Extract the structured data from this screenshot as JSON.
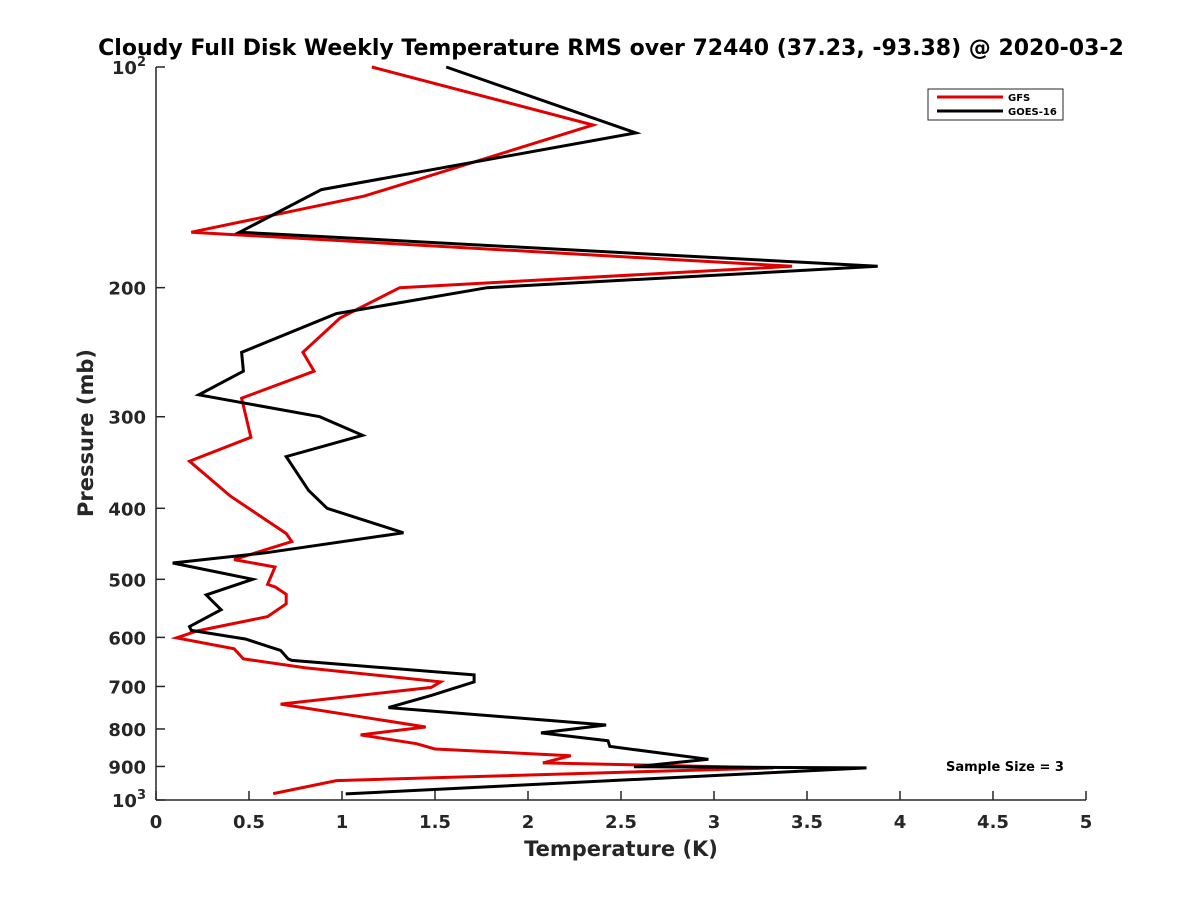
{
  "chart_data": {
    "type": "line",
    "title": "Cloudy Full Disk Weekly Temperature RMS over 72440 (37.23, -93.38) @ 2020-03-2",
    "xlabel": "Temperature (K)",
    "ylabel": "Pressure (mb)",
    "xlim": [
      0,
      5
    ],
    "ylim": [
      100,
      1000
    ],
    "y_scale": "log",
    "y_reversed": true,
    "grid": false,
    "legend_position": "top-right",
    "x_ticks": [
      "0",
      "0.5",
      "1",
      "1.5",
      "2",
      "2.5",
      "3",
      "3.5",
      "4",
      "4.5",
      "5"
    ],
    "y_ticks": [
      {
        "value": 200,
        "label": "200"
      },
      {
        "value": 300,
        "label": "300"
      },
      {
        "value": 400,
        "label": "400"
      },
      {
        "value": 500,
        "label": "500"
      },
      {
        "value": 600,
        "label": "600"
      },
      {
        "value": 700,
        "label": "700"
      },
      {
        "value": 800,
        "label": "800"
      },
      {
        "value": 900,
        "label": "900"
      }
    ],
    "y_power_ticks": [
      {
        "value": 100,
        "base": "10",
        "exp": "2"
      },
      {
        "value": 1000,
        "base": "10",
        "exp": "3"
      }
    ],
    "annotation": "Sample Size = 3",
    "series": [
      {
        "name": "GFS",
        "color": "#e00000",
        "points": [
          [
            1.16,
            100
          ],
          [
            2.35,
            120
          ],
          [
            1.12,
            150
          ],
          [
            0.19,
            168
          ],
          [
            3.42,
            187
          ],
          [
            1.31,
            200
          ],
          [
            0.99,
            220
          ],
          [
            0.79,
            245
          ],
          [
            0.85,
            260
          ],
          [
            0.46,
            283
          ],
          [
            0.51,
            320
          ],
          [
            0.18,
            345
          ],
          [
            0.4,
            385
          ],
          [
            0.7,
            433
          ],
          [
            0.73,
            444
          ],
          [
            0.42,
            470
          ],
          [
            0.64,
            481
          ],
          [
            0.6,
            508
          ],
          [
            0.64,
            512
          ],
          [
            0.7,
            524
          ],
          [
            0.7,
            540
          ],
          [
            0.6,
            562
          ],
          [
            0.22,
            588
          ],
          [
            0.11,
            601
          ],
          [
            0.42,
            622
          ],
          [
            0.47,
            642
          ],
          [
            0.8,
            660
          ],
          [
            1.53,
            690
          ],
          [
            1.48,
            702
          ],
          [
            0.67,
            740
          ],
          [
            1.45,
            795
          ],
          [
            1.1,
            815
          ],
          [
            1.4,
            838
          ],
          [
            1.5,
            852
          ],
          [
            2.23,
            870
          ],
          [
            2.08,
            890
          ],
          [
            3.32,
            904
          ],
          [
            0.97,
            941
          ],
          [
            0.63,
            980
          ]
        ]
      },
      {
        "name": "GOES-16",
        "color": "#000000",
        "points": [
          [
            1.56,
            100
          ],
          [
            2.58,
            123
          ],
          [
            0.89,
            147
          ],
          [
            0.45,
            168
          ],
          [
            3.88,
            187
          ],
          [
            1.78,
            200
          ],
          [
            0.97,
            217
          ],
          [
            0.46,
            245
          ],
          [
            0.47,
            260
          ],
          [
            0.23,
            280
          ],
          [
            0.88,
            300
          ],
          [
            1.11,
            318
          ],
          [
            0.7,
            340
          ],
          [
            0.82,
            378
          ],
          [
            0.92,
            400
          ],
          [
            1.33,
            432
          ],
          [
            0.59,
            460
          ],
          [
            0.09,
            475
          ],
          [
            0.52,
            500
          ],
          [
            0.27,
            525
          ],
          [
            0.35,
            550
          ],
          [
            0.18,
            580
          ],
          [
            0.19,
            587
          ],
          [
            0.48,
            603
          ],
          [
            0.67,
            625
          ],
          [
            0.71,
            642
          ],
          [
            0.73,
            645
          ],
          [
            1.71,
            675
          ],
          [
            1.71,
            690
          ],
          [
            1.48,
            720
          ],
          [
            1.25,
            748
          ],
          [
            2.42,
            790
          ],
          [
            2.07,
            810
          ],
          [
            2.43,
            830
          ],
          [
            2.44,
            845
          ],
          [
            2.97,
            880
          ],
          [
            2.57,
            901
          ],
          [
            3.82,
            904
          ],
          [
            1.02,
            981
          ]
        ]
      }
    ]
  }
}
